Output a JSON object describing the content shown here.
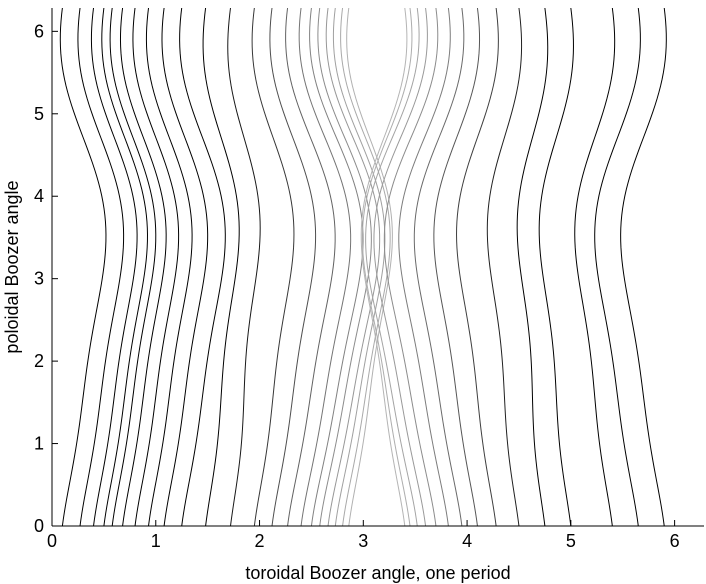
{
  "chart_data": {
    "type": "line",
    "title": "",
    "xlabel": "toroidal Boozer angle, one period",
    "ylabel": "poloidal Boozer angle",
    "xlim": [
      0,
      6.2832
    ],
    "ylim": [
      0,
      6.2832
    ],
    "xticks": [
      "0",
      "1",
      "2",
      "3",
      "4",
      "5",
      "6"
    ],
    "yticks": [
      "0",
      "1",
      "2",
      "3",
      "4",
      "5",
      "6"
    ],
    "grid": false,
    "legend": "none",
    "line_color": "#000000",
    "series_count": 37,
    "contours": {
      "description_of_levels": "contour lines of |B| on a flux surface over one toroidal field period; lines fade from black at the field-period boundaries to light grey near the center",
      "x_at_bottom": [
        0.1,
        0.27,
        0.4,
        0.5,
        0.58,
        0.68,
        0.8,
        0.93,
        1.08,
        1.25,
        1.48,
        1.72,
        1.95,
        2.12,
        2.27,
        2.4,
        2.5,
        2.58,
        2.66,
        2.73,
        2.8,
        2.86,
        3.4,
        3.45,
        3.52,
        3.6,
        3.7,
        3.82,
        3.95,
        4.1,
        4.28,
        4.5,
        4.75,
        5.0,
        5.4,
        5.65,
        5.9
      ],
      "amplitude": [
        0.2,
        0.2,
        0.2,
        0.2,
        0.2,
        0.2,
        0.2,
        0.2,
        0.2,
        0.2,
        0.15,
        0.13,
        0.18,
        0.2,
        0.22,
        0.23,
        0.24,
        0.24,
        0.24,
        0.23,
        0.22,
        0.2,
        -0.2,
        -0.22,
        -0.24,
        -0.24,
        -0.24,
        -0.23,
        -0.22,
        -0.2,
        -0.18,
        -0.14,
        -0.12,
        -0.14,
        -0.17,
        -0.2,
        -0.2
      ]
    }
  }
}
